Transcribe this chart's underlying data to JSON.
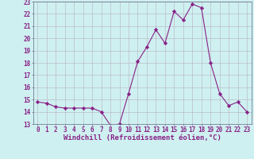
{
  "x": [
    0,
    1,
    2,
    3,
    4,
    5,
    6,
    7,
    8,
    9,
    10,
    11,
    12,
    13,
    14,
    15,
    16,
    17,
    18,
    19,
    20,
    21,
    22,
    23
  ],
  "y": [
    14.8,
    14.7,
    14.4,
    14.3,
    14.3,
    14.3,
    14.3,
    14.0,
    12.9,
    13.0,
    15.5,
    18.1,
    19.3,
    20.7,
    19.6,
    22.2,
    21.5,
    22.8,
    22.5,
    18.0,
    15.5,
    14.5,
    14.8,
    14.0
  ],
  "line_color": "#882288",
  "marker": "D",
  "markersize": 2.2,
  "linewidth": 0.8,
  "xlabel": "Windchill (Refroidissement éolien,°C)",
  "xlabel_fontsize": 6.5,
  "ylim": [
    13,
    23
  ],
  "xlim": [
    -0.5,
    23.5
  ],
  "yticks": [
    13,
    14,
    15,
    16,
    17,
    18,
    19,
    20,
    21,
    22,
    23
  ],
  "xticks": [
    0,
    1,
    2,
    3,
    4,
    5,
    6,
    7,
    8,
    9,
    10,
    11,
    12,
    13,
    14,
    15,
    16,
    17,
    18,
    19,
    20,
    21,
    22,
    23
  ],
  "tick_fontsize": 5.5,
  "bg_color": "#cff0f0",
  "grid_color": "#bbbbcc",
  "fig_bg": "#cff0f0",
  "spine_color": "#666688"
}
